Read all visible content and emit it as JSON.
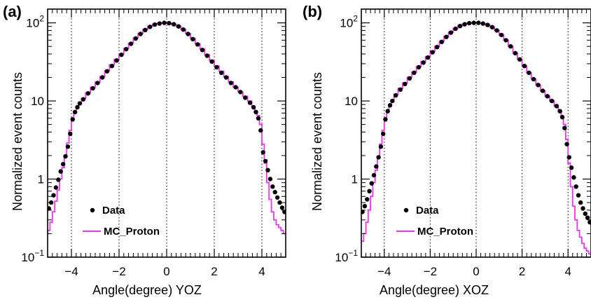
{
  "colors": {
    "data": "#000000",
    "mc": "#ee33ee",
    "frame": "#000000"
  },
  "chart_data": [
    {
      "type": "scatter",
      "panel_label": "(a)",
      "xlabel": "Angle(degree) YOZ",
      "ylabel": "Normalized event counts",
      "xlim": [
        -5,
        5
      ],
      "ylim": [
        0.1,
        150
      ],
      "yscale": "log",
      "x_ticks": [
        -4,
        -2,
        0,
        2,
        4
      ],
      "x_tick_labels": [
        "−4",
        "−2",
        "0",
        "2",
        "4"
      ],
      "y_ticks": [
        0.1,
        1,
        10,
        100
      ],
      "y_tick_labels": [
        {
          "base": "10",
          "exp": "−1"
        },
        {
          "base": "1",
          "exp": ""
        },
        {
          "base": "10",
          "exp": ""
        },
        {
          "base": "10",
          "exp": "2"
        }
      ],
      "grid": "vertical dotted at x = -4, -2, 0, 2, 4",
      "legend_position": "bottom-left",
      "series": [
        {
          "name": "Data",
          "style": "markers",
          "x": [
            -4.95,
            -4.85,
            -4.75,
            -4.65,
            -4.55,
            -4.45,
            -4.35,
            -4.25,
            -4.15,
            -4.05,
            -3.95,
            -3.85,
            -3.75,
            -3.65,
            -3.5,
            -3.3,
            -3.1,
            -2.9,
            -2.7,
            -2.5,
            -2.3,
            -2.1,
            -1.9,
            -1.7,
            -1.5,
            -1.3,
            -1.1,
            -0.9,
            -0.7,
            -0.5,
            -0.3,
            -0.1,
            0.1,
            0.3,
            0.5,
            0.7,
            0.9,
            1.1,
            1.3,
            1.5,
            1.7,
            1.9,
            2.1,
            2.3,
            2.5,
            2.7,
            2.9,
            3.1,
            3.3,
            3.5,
            3.65,
            3.75,
            3.85,
            3.95,
            4.05,
            4.15,
            4.25,
            4.35,
            4.45,
            4.55,
            4.65,
            4.75,
            4.85,
            4.95
          ],
          "y": [
            0.42,
            0.5,
            0.62,
            0.78,
            0.98,
            1.25,
            1.55,
            1.95,
            2.6,
            3.8,
            5.8,
            7.2,
            8.3,
            9.3,
            10.5,
            12.5,
            14.5,
            17,
            20,
            24,
            28,
            33,
            39,
            46,
            54,
            63,
            72,
            81,
            89,
            95,
            98,
            100,
            99,
            96,
            90,
            82,
            72,
            62,
            53,
            45,
            38,
            32,
            27,
            23,
            20,
            17,
            15,
            13,
            11,
            9.5,
            8.3,
            7.2,
            6.0,
            4.2,
            2.2,
            1.7,
            1.3,
            1.0,
            0.8,
            0.68,
            0.58,
            0.5,
            0.43,
            0.38
          ]
        },
        {
          "name": "MC_Proton",
          "style": "step",
          "x": [
            -4.95,
            -4.85,
            -4.75,
            -4.65,
            -4.55,
            -4.45,
            -4.35,
            -4.25,
            -4.15,
            -4.05,
            -3.95,
            -3.85,
            -3.75,
            -3.65,
            -3.5,
            -3.3,
            -3.1,
            -2.9,
            -2.7,
            -2.5,
            -2.3,
            -2.1,
            -1.9,
            -1.7,
            -1.5,
            -1.3,
            -1.1,
            -0.9,
            -0.7,
            -0.5,
            -0.3,
            -0.1,
            0.1,
            0.3,
            0.5,
            0.7,
            0.9,
            1.1,
            1.3,
            1.5,
            1.7,
            1.9,
            2.1,
            2.3,
            2.5,
            2.7,
            2.9,
            3.1,
            3.3,
            3.5,
            3.65,
            3.75,
            3.85,
            3.95,
            4.05,
            4.15,
            4.25,
            4.35,
            4.45,
            4.55,
            4.65,
            4.75,
            4.85,
            4.95
          ],
          "y": [
            0.22,
            0.28,
            0.38,
            0.52,
            0.72,
            1.0,
            1.4,
            2.0,
            2.9,
            4.2,
            6.0,
            7.4,
            8.5,
            9.5,
            10.8,
            12.8,
            15,
            17.5,
            20.5,
            24.5,
            29,
            34,
            40,
            47,
            55,
            64,
            73,
            82,
            90,
            96,
            99,
            100,
            99,
            96,
            90,
            82,
            73,
            63,
            54,
            46,
            39,
            33,
            28,
            24,
            20.5,
            17.5,
            15,
            13,
            11.5,
            10,
            8.6,
            7.5,
            6.5,
            5.0,
            2.8,
            1.6,
            0.9,
            0.55,
            0.38,
            0.3,
            0.26,
            0.24,
            0.22,
            0.2
          ]
        }
      ]
    },
    {
      "type": "scatter",
      "panel_label": "(b)",
      "xlabel": "Angle(degree) XOZ",
      "ylabel": "Normalized event counts",
      "xlim": [
        -5,
        5
      ],
      "ylim": [
        0.1,
        150
      ],
      "yscale": "log",
      "x_ticks": [
        -4,
        -2,
        0,
        2,
        4
      ],
      "x_tick_labels": [
        "−4",
        "−2",
        "0",
        "2",
        "4"
      ],
      "y_ticks": [
        0.1,
        1,
        10,
        100
      ],
      "y_tick_labels": [
        {
          "base": "10",
          "exp": "−1"
        },
        {
          "base": "1",
          "exp": ""
        },
        {
          "base": "10",
          "exp": ""
        },
        {
          "base": "10",
          "exp": "2"
        }
      ],
      "grid": "vertical dotted at x = -4, -2, 0, 2, 4",
      "legend_position": "bottom-left",
      "series": [
        {
          "name": "Data",
          "style": "markers",
          "x": [
            -4.95,
            -4.85,
            -4.75,
            -4.65,
            -4.55,
            -4.45,
            -4.35,
            -4.25,
            -4.15,
            -4.05,
            -3.95,
            -3.85,
            -3.75,
            -3.65,
            -3.5,
            -3.3,
            -3.1,
            -2.9,
            -2.7,
            -2.5,
            -2.3,
            -2.1,
            -1.9,
            -1.7,
            -1.5,
            -1.3,
            -1.1,
            -0.9,
            -0.7,
            -0.5,
            -0.3,
            -0.1,
            0.1,
            0.3,
            0.5,
            0.7,
            0.9,
            1.1,
            1.3,
            1.5,
            1.7,
            1.9,
            2.1,
            2.3,
            2.5,
            2.7,
            2.9,
            3.1,
            3.3,
            3.5,
            3.65,
            3.75,
            3.85,
            3.95,
            4.05,
            4.15,
            4.25,
            4.35,
            4.45,
            4.55,
            4.65,
            4.75,
            4.85,
            4.95
          ],
          "y": [
            0.38,
            0.45,
            0.55,
            0.7,
            0.88,
            1.12,
            1.45,
            1.9,
            2.6,
            3.8,
            5.8,
            7.4,
            8.8,
            10,
            11.8,
            14,
            16.5,
            19.5,
            23,
            27,
            31,
            36,
            42,
            49,
            57,
            66,
            75,
            84,
            91,
            96,
            99,
            100,
            100,
            98,
            94,
            88,
            80,
            70,
            60,
            50,
            41,
            34,
            28,
            23,
            19,
            16,
            13.5,
            11.5,
            10,
            8.6,
            7.4,
            6.2,
            4.5,
            2.8,
            1.9,
            1.4,
            1.05,
            0.8,
            0.62,
            0.5,
            0.42,
            0.36,
            0.32,
            0.28
          ]
        },
        {
          "name": "MC_Proton",
          "style": "step",
          "x": [
            -4.95,
            -4.85,
            -4.75,
            -4.65,
            -4.55,
            -4.45,
            -4.35,
            -4.25,
            -4.15,
            -4.05,
            -3.95,
            -3.85,
            -3.75,
            -3.65,
            -3.5,
            -3.3,
            -3.1,
            -2.9,
            -2.7,
            -2.5,
            -2.3,
            -2.1,
            -1.9,
            -1.7,
            -1.5,
            -1.3,
            -1.1,
            -0.9,
            -0.7,
            -0.5,
            -0.3,
            -0.1,
            0.1,
            0.3,
            0.5,
            0.7,
            0.9,
            1.1,
            1.3,
            1.5,
            1.7,
            1.9,
            2.1,
            2.3,
            2.5,
            2.7,
            2.9,
            3.1,
            3.3,
            3.5,
            3.65,
            3.75,
            3.85,
            3.95,
            4.05,
            4.15,
            4.25,
            4.35,
            4.45,
            4.55,
            4.65,
            4.75,
            4.85,
            4.95
          ],
          "y": [
            0.16,
            0.2,
            0.28,
            0.4,
            0.6,
            0.9,
            1.3,
            1.9,
            2.8,
            4.2,
            6.0,
            7.6,
            9.0,
            10.3,
            12.2,
            14.5,
            17,
            20,
            23.5,
            27.5,
            32,
            37,
            43,
            50,
            58,
            67,
            76,
            85,
            92,
            97,
            100,
            100,
            100,
            98,
            94,
            88,
            80,
            70,
            60,
            50,
            41,
            34,
            28,
            23,
            19,
            16,
            13.5,
            11.5,
            10,
            8.6,
            7.4,
            6.3,
            5.0,
            3.2,
            1.6,
            0.8,
            0.45,
            0.3,
            0.22,
            0.18,
            0.15,
            0.13,
            0.12,
            0.11
          ]
        }
      ]
    }
  ]
}
